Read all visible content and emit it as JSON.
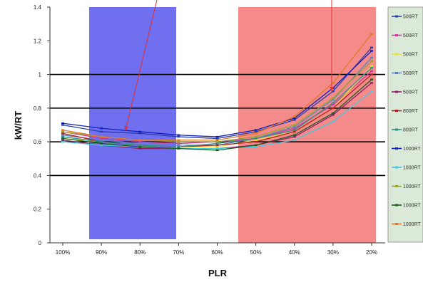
{
  "chart_data": {
    "type": "line",
    "title": "",
    "xlabel": "PLR",
    "ylabel": "kW/RT",
    "ylim": [
      0,
      1.4
    ],
    "yticks": [
      "0",
      "0.2",
      "0.4",
      "0.6",
      "0.8",
      "1",
      "1.2",
      "1.4"
    ],
    "categories": [
      "100%",
      "90%",
      "80%",
      "70%",
      "60%",
      "50%",
      "40%",
      "30%",
      "20%"
    ],
    "major_gridlines": [
      0.4,
      0.6,
      0.8,
      1.0
    ],
    "colors": {
      "band_blue": "#6f6ff0",
      "band_red": "#f58a8a",
      "legend_bg": "#dbe9d8",
      "arrow": "#e03030"
    },
    "legend": {
      "placement": "right",
      "labels": [
        "500RT",
        "500RT",
        "500RT",
        "500RT",
        "500RT",
        "800RT",
        "800RT",
        "1000RT",
        "1000RT",
        "1000RT",
        "1000RT",
        "1000RT"
      ]
    },
    "series": [
      {
        "color": "#2b3fa8",
        "values": [
          0.7,
          0.66,
          0.65,
          0.63,
          0.62,
          0.66,
          0.73,
          0.9,
          1.16
        ]
      },
      {
        "color": "#d43b9a",
        "values": [
          0.66,
          0.62,
          0.6,
          0.59,
          0.6,
          0.62,
          0.68,
          0.82,
          1.02
        ]
      },
      {
        "color": "#e8e23a",
        "values": [
          0.62,
          0.6,
          0.58,
          0.57,
          0.57,
          0.61,
          0.66,
          0.8,
          1.05
        ]
      },
      {
        "color": "#5a86c8",
        "values": [
          0.64,
          0.61,
          0.59,
          0.58,
          0.58,
          0.62,
          0.69,
          0.85,
          1.1
        ]
      },
      {
        "color": "#8e1f6a",
        "values": [
          0.61,
          0.58,
          0.56,
          0.56,
          0.56,
          0.58,
          0.63,
          0.76,
          0.95
        ]
      },
      {
        "color": "#b02020",
        "values": [
          0.65,
          0.6,
          0.58,
          0.57,
          0.58,
          0.6,
          0.66,
          0.8,
          1.0
        ]
      },
      {
        "color": "#2f8f86",
        "values": [
          0.63,
          0.6,
          0.58,
          0.57,
          0.59,
          0.62,
          0.67,
          0.83,
          1.04
        ]
      },
      {
        "color": "#1020c0",
        "values": [
          0.71,
          0.68,
          0.66,
          0.64,
          0.63,
          0.67,
          0.74,
          0.92,
          1.14
        ]
      },
      {
        "color": "#47c7e0",
        "values": [
          0.6,
          0.58,
          0.57,
          0.56,
          0.56,
          0.57,
          0.61,
          0.72,
          0.9
        ]
      },
      {
        "color": "#9aa42a",
        "values": [
          0.66,
          0.63,
          0.61,
          0.6,
          0.6,
          0.63,
          0.7,
          0.86,
          1.08
        ]
      },
      {
        "color": "#1b5e20",
        "values": [
          0.62,
          0.59,
          0.57,
          0.56,
          0.55,
          0.58,
          0.64,
          0.77,
          0.97
        ]
      },
      {
        "color": "#e07a2a",
        "values": [
          0.67,
          0.63,
          0.61,
          0.61,
          0.61,
          0.65,
          0.75,
          0.95,
          1.24
        ]
      }
    ]
  }
}
